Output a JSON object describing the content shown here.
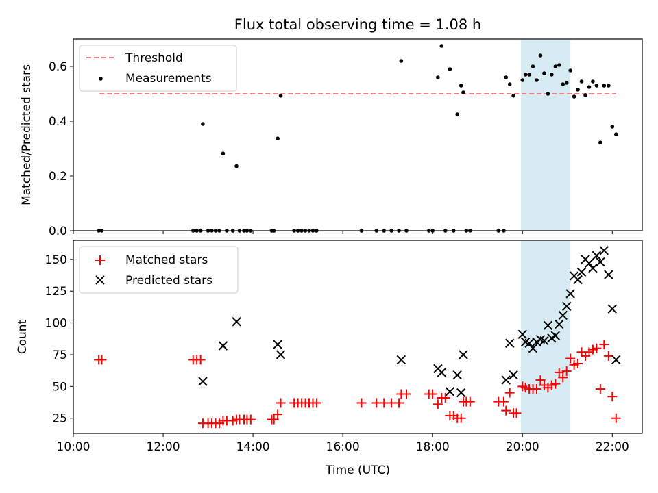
{
  "figure": {
    "title": "Flux total observing time = 1.08 h"
  },
  "colors": {
    "threshold": "#f08080",
    "measurement": "#000000",
    "matched": "#ff0000",
    "predicted": "#000000",
    "highlight": "#add8e6"
  },
  "chart_data": [
    {
      "type": "scatter",
      "ylabel": "Matched/Predicted stars",
      "ylim": [
        0,
        0.7
      ],
      "y_ticks": [
        "0.0",
        "0.2",
        "0.4",
        "0.6"
      ],
      "y_tick_values": [
        0.0,
        0.2,
        0.4,
        0.6
      ],
      "xlim": [
        "10:00",
        "22:40"
      ],
      "highlight_span": [
        "19:58",
        "21:04"
      ],
      "legend": {
        "location": "top-left",
        "entries": [
          "Threshold",
          "Measurements"
        ]
      },
      "threshold": {
        "name": "Threshold",
        "y": 0.5,
        "x": [
          "10:35",
          "22:05"
        ]
      },
      "series": [
        {
          "name": "Measurements",
          "marker": "dot",
          "points": [
            [
              "10:34",
              0.0
            ],
            [
              "10:38",
              0.0
            ],
            [
              "12:40",
              0.0
            ],
            [
              "12:45",
              0.0
            ],
            [
              "12:50",
              0.0
            ],
            [
              "12:53",
              0.39
            ],
            [
              "13:00",
              0.0
            ],
            [
              "13:05",
              0.0
            ],
            [
              "13:10",
              0.0
            ],
            [
              "13:15",
              0.0
            ],
            [
              "13:20",
              0.282
            ],
            [
              "13:25",
              0.0
            ],
            [
              "13:33",
              0.0
            ],
            [
              "13:38",
              0.236
            ],
            [
              "13:42",
              0.0
            ],
            [
              "13:48",
              0.0
            ],
            [
              "13:52",
              0.0
            ],
            [
              "13:57",
              0.0
            ],
            [
              "14:25",
              0.0
            ],
            [
              "14:28",
              0.0
            ],
            [
              "14:33",
              0.337
            ],
            [
              "14:37",
              0.493
            ],
            [
              "14:55",
              0.0
            ],
            [
              "15:00",
              0.0
            ],
            [
              "15:05",
              0.0
            ],
            [
              "15:10",
              0.0
            ],
            [
              "15:15",
              0.0
            ],
            [
              "15:20",
              0.0
            ],
            [
              "15:25",
              0.0
            ],
            [
              "16:25",
              0.0
            ],
            [
              "16:45",
              0.0
            ],
            [
              "16:55",
              0.0
            ],
            [
              "17:05",
              0.0
            ],
            [
              "17:15",
              0.0
            ],
            [
              "17:18",
              0.62
            ],
            [
              "17:25",
              0.0
            ],
            [
              "17:55",
              0.0
            ],
            [
              "18:00",
              0.0
            ],
            [
              "18:07",
              0.56
            ],
            [
              "18:12",
              0.675
            ],
            [
              "18:17",
              0.0
            ],
            [
              "18:23",
              0.59
            ],
            [
              "18:28",
              0.0
            ],
            [
              "18:33",
              0.425
            ],
            [
              "18:38",
              0.53
            ],
            [
              "18:41",
              0.505
            ],
            [
              "18:45",
              0.0
            ],
            [
              "18:50",
              0.0
            ],
            [
              "19:28",
              0.0
            ],
            [
              "19:35",
              0.0
            ],
            [
              "19:38",
              0.56
            ],
            [
              "19:43",
              0.535
            ],
            [
              "19:48",
              0.493
            ],
            [
              "20:00",
              0.55
            ],
            [
              "20:04",
              0.57
            ],
            [
              "20:09",
              0.57
            ],
            [
              "20:14",
              0.6
            ],
            [
              "20:19",
              0.55
            ],
            [
              "20:24",
              0.64
            ],
            [
              "20:29",
              0.575
            ],
            [
              "20:34",
              0.5
            ],
            [
              "20:39",
              0.57
            ],
            [
              "20:44",
              0.6
            ],
            [
              "20:49",
              0.605
            ],
            [
              "20:54",
              0.535
            ],
            [
              "20:59",
              0.54
            ],
            [
              "21:04",
              0.585
            ],
            [
              "21:09",
              0.49
            ],
            [
              "21:14",
              0.515
            ],
            [
              "21:19",
              0.545
            ],
            [
              "21:24",
              0.495
            ],
            [
              "21:29",
              0.525
            ],
            [
              "21:34",
              0.545
            ],
            [
              "21:39",
              0.53
            ],
            [
              "21:44",
              0.322
            ],
            [
              "21:49",
              0.53
            ],
            [
              "21:55",
              0.53
            ],
            [
              "22:00",
              0.38
            ],
            [
              "22:05",
              0.352
            ]
          ]
        }
      ]
    },
    {
      "type": "scatter",
      "xlabel": "Time (UTC)",
      "ylabel": "Count",
      "ylim": [
        13,
        165
      ],
      "y_ticks": [
        "25",
        "50",
        "75",
        "100",
        "125",
        "150"
      ],
      "y_tick_values": [
        25,
        50,
        75,
        100,
        125,
        150
      ],
      "xlim": [
        "10:00",
        "22:40"
      ],
      "x_ticks": [
        "10:00",
        "12:00",
        "14:00",
        "16:00",
        "18:00",
        "20:00",
        "22:00"
      ],
      "highlight_span": [
        "19:58",
        "21:04"
      ],
      "legend": {
        "location": "top-left",
        "entries": [
          "Matched stars",
          "Predicted stars"
        ]
      },
      "series": [
        {
          "name": "Matched stars",
          "marker": "plus",
          "points": [
            [
              "10:34",
              71
            ],
            [
              "10:38",
              71
            ],
            [
              "12:40",
              71
            ],
            [
              "12:45",
              71
            ],
            [
              "12:50",
              71
            ],
            [
              "12:53",
              21
            ],
            [
              "13:00",
              21
            ],
            [
              "13:05",
              21
            ],
            [
              "13:10",
              21
            ],
            [
              "13:15",
              21
            ],
            [
              "13:20",
              23
            ],
            [
              "13:25",
              23
            ],
            [
              "13:33",
              23
            ],
            [
              "13:38",
              24
            ],
            [
              "13:42",
              24
            ],
            [
              "13:48",
              24
            ],
            [
              "13:52",
              24
            ],
            [
              "13:57",
              24
            ],
            [
              "14:25",
              24
            ],
            [
              "14:28",
              24
            ],
            [
              "14:33",
              28
            ],
            [
              "14:37",
              37
            ],
            [
              "14:55",
              37
            ],
            [
              "15:00",
              37
            ],
            [
              "15:05",
              37
            ],
            [
              "15:10",
              37
            ],
            [
              "15:15",
              37
            ],
            [
              "15:20",
              37
            ],
            [
              "15:25",
              37
            ],
            [
              "16:25",
              37
            ],
            [
              "16:45",
              37
            ],
            [
              "16:55",
              37
            ],
            [
              "17:05",
              37
            ],
            [
              "17:15",
              37
            ],
            [
              "17:18",
              44
            ],
            [
              "17:25",
              44
            ],
            [
              "17:55",
              44
            ],
            [
              "18:00",
              44
            ],
            [
              "18:07",
              36
            ],
            [
              "18:12",
              41
            ],
            [
              "18:17",
              41
            ],
            [
              "18:23",
              27
            ],
            [
              "18:28",
              27
            ],
            [
              "18:33",
              25
            ],
            [
              "18:38",
              25
            ],
            [
              "18:41",
              38
            ],
            [
              "18:45",
              38
            ],
            [
              "18:50",
              38
            ],
            [
              "19:28",
              38
            ],
            [
              "19:35",
              38
            ],
            [
              "19:38",
              31
            ],
            [
              "19:43",
              45
            ],
            [
              "19:48",
              29
            ],
            [
              "19:52",
              29
            ],
            [
              "20:00",
              50
            ],
            [
              "20:04",
              49
            ],
            [
              "20:09",
              48
            ],
            [
              "20:14",
              48
            ],
            [
              "20:19",
              48
            ],
            [
              "20:24",
              55
            ],
            [
              "20:29",
              51
            ],
            [
              "20:34",
              49
            ],
            [
              "20:39",
              51
            ],
            [
              "20:44",
              52
            ],
            [
              "20:49",
              61
            ],
            [
              "20:54",
              57
            ],
            [
              "20:59",
              62
            ],
            [
              "21:04",
              72
            ],
            [
              "21:09",
              67
            ],
            [
              "21:14",
              68
            ],
            [
              "21:19",
              77
            ],
            [
              "21:24",
              74
            ],
            [
              "21:29",
              77
            ],
            [
              "21:34",
              79
            ],
            [
              "21:39",
              80
            ],
            [
              "21:44",
              48
            ],
            [
              "21:49",
              83
            ],
            [
              "21:55",
              74
            ],
            [
              "22:00",
              42
            ],
            [
              "22:05",
              25
            ]
          ]
        },
        {
          "name": "Predicted stars",
          "marker": "x",
          "points": [
            [
              "12:53",
              54
            ],
            [
              "13:20",
              82
            ],
            [
              "13:38",
              101
            ],
            [
              "14:33",
              83
            ],
            [
              "14:37",
              75
            ],
            [
              "17:18",
              71
            ],
            [
              "18:07",
              64
            ],
            [
              "18:12",
              61
            ],
            [
              "18:23",
              46
            ],
            [
              "18:33",
              59
            ],
            [
              "18:38",
              45
            ],
            [
              "18:41",
              75
            ],
            [
              "19:38",
              55
            ],
            [
              "19:43",
              84
            ],
            [
              "19:48",
              59
            ],
            [
              "20:00",
              91
            ],
            [
              "20:04",
              85
            ],
            [
              "20:09",
              84
            ],
            [
              "20:14",
              80
            ],
            [
              "20:19",
              85
            ],
            [
              "20:24",
              87
            ],
            [
              "20:29",
              86
            ],
            [
              "20:34",
              98
            ],
            [
              "20:39",
              88
            ],
            [
              "20:44",
              90
            ],
            [
              "20:49",
              99
            ],
            [
              "20:54",
              106
            ],
            [
              "20:59",
              113
            ],
            [
              "21:04",
              123
            ],
            [
              "21:09",
              137
            ],
            [
              "21:14",
              134
            ],
            [
              "21:19",
              140
            ],
            [
              "21:24",
              150
            ],
            [
              "21:29",
              147
            ],
            [
              "21:34",
              143
            ],
            [
              "21:39",
              153
            ],
            [
              "21:44",
              148
            ],
            [
              "21:49",
              157
            ],
            [
              "21:55",
              138
            ],
            [
              "22:00",
              111
            ],
            [
              "22:05",
              71
            ]
          ]
        }
      ]
    }
  ]
}
